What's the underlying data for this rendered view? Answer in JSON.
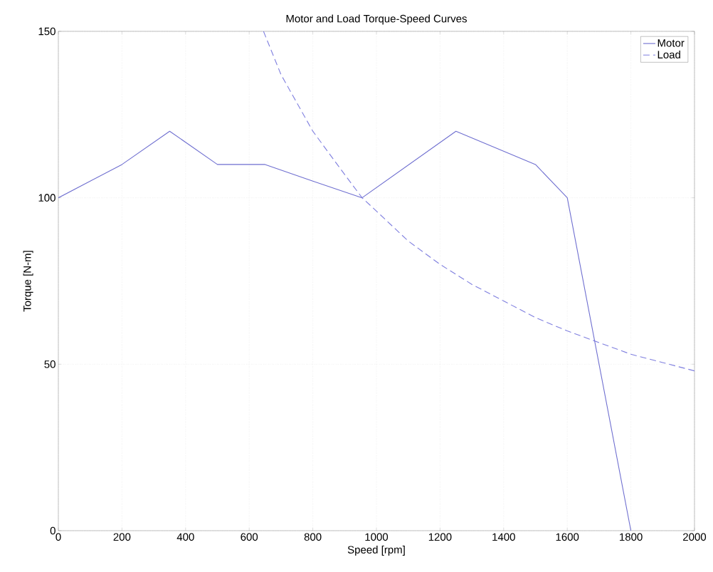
{
  "chart_data": {
    "type": "line",
    "title": "Motor and Load Torque-Speed Curves",
    "xlabel": "Speed [rpm]",
    "ylabel": "Torque [N-m]",
    "series": [
      {
        "name": "Motor",
        "color": "#6f6fd0",
        "line_style": "solid",
        "x": [
          0,
          200,
          350,
          500,
          650,
          800,
          955,
          1250,
          1500,
          1600,
          1800
        ],
        "values": [
          100,
          110,
          120,
          110,
          110,
          105,
          100,
          120,
          110,
          100,
          0
        ]
      },
      {
        "name": "Load",
        "color": "#7f7fdf",
        "line_style": "dashed",
        "x": [
          645,
          700,
          800,
          900,
          955,
          1000,
          1100,
          1200,
          1300,
          1400,
          1500,
          1600,
          1700,
          1800,
          1900,
          2000
        ],
        "values": [
          150,
          137,
          120,
          107,
          100,
          96,
          87,
          80,
          74,
          69,
          64,
          60,
          56.5,
          53,
          50.5,
          48
        ]
      }
    ],
    "xlim": [
      0,
      2000
    ],
    "ylim": [
      0,
      150
    ],
    "xticks": [
      0,
      200,
      400,
      600,
      800,
      1000,
      1200,
      1400,
      1600,
      1800,
      2000
    ],
    "yticks": [
      0,
      50,
      100,
      150
    ],
    "grid": true,
    "legend": "top right",
    "marker": "none"
  }
}
